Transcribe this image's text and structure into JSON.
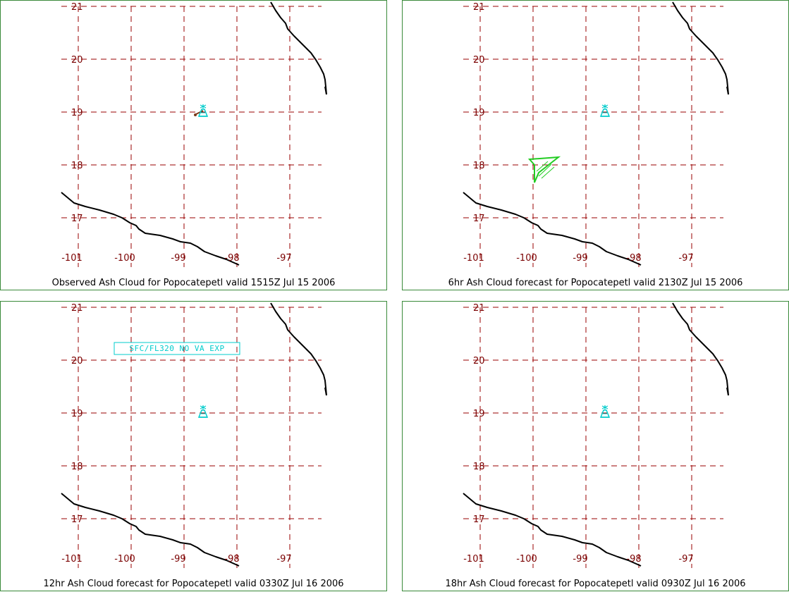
{
  "panels": [
    {
      "caption": "Observed Ash Cloud for Popocatepetl valid 1515Z Jul 15 2006",
      "has_ash_polygon": false,
      "has_observed_plume": true,
      "text_box": null
    },
    {
      "caption": "6hr Ash Cloud forecast for Popocatepetl valid 2130Z Jul 15 2006",
      "has_ash_polygon": true,
      "has_observed_plume": false,
      "text_box": null
    },
    {
      "caption": "12hr Ash Cloud forecast for Popocatepetl valid 0330Z Jul 16 2006",
      "has_ash_polygon": false,
      "has_observed_plume": false,
      "text_box": "SFC/FL320 NO VA EXP"
    },
    {
      "caption": "18hr Ash Cloud forecast for Popocatepetl valid 0930Z Jul 16 2006",
      "has_ash_polygon": false,
      "has_observed_plume": false,
      "text_box": null
    }
  ],
  "map": {
    "lat_labels": [
      "21",
      "20",
      "19",
      "18",
      "17"
    ],
    "lon_labels": [
      "-101",
      "-100",
      "-99",
      "-98",
      "-97"
    ],
    "volcano_name": "Popocatepetl",
    "volcano_icon": "volcano-icon",
    "colors": {
      "grid": "#9a0000",
      "tick_labels": "#7a0000",
      "coastline": "#000000",
      "volcano": "#00cccc",
      "ash_polygon": "#22cc22",
      "plume": "#7a3a1a",
      "panel_border": "#3a8a3a"
    }
  }
}
